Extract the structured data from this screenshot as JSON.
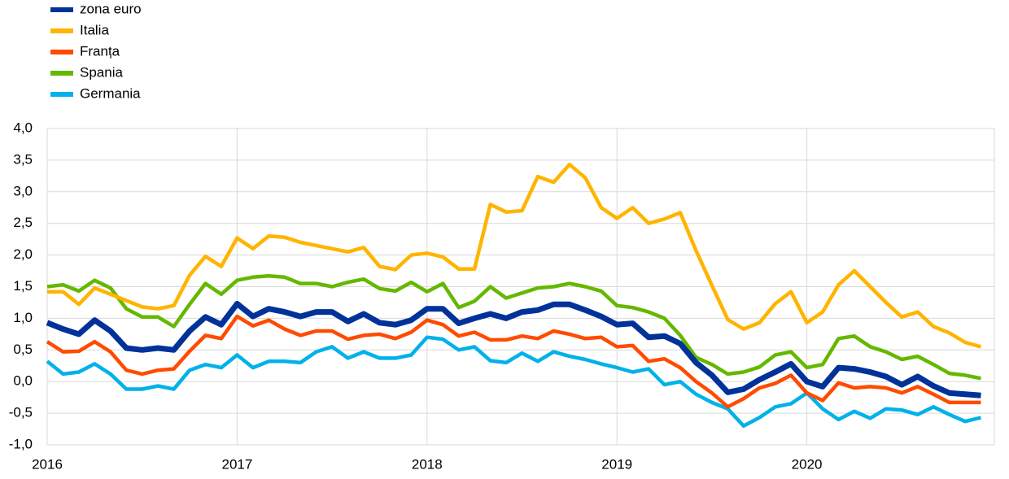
{
  "chart_data": {
    "type": "line",
    "categories": [
      "2016",
      null,
      null,
      null,
      null,
      null,
      null,
      null,
      null,
      null,
      null,
      null,
      "2017",
      null,
      null,
      null,
      null,
      null,
      null,
      null,
      null,
      null,
      null,
      null,
      "2018",
      null,
      null,
      null,
      null,
      null,
      null,
      null,
      null,
      null,
      null,
      null,
      "2019",
      null,
      null,
      null,
      null,
      null,
      null,
      null,
      null,
      null,
      null,
      null,
      "2020",
      null,
      null,
      null,
      null,
      null,
      null,
      null,
      null,
      null,
      null,
      null
    ],
    "series": [
      {
        "name": "zona euro",
        "color": "#003299",
        "values": [
          0.93,
          0.83,
          0.75,
          0.97,
          0.8,
          0.53,
          0.5,
          0.53,
          0.5,
          0.8,
          1.02,
          0.9,
          1.23,
          1.03,
          1.15,
          1.1,
          1.03,
          1.1,
          1.1,
          0.95,
          1.07,
          0.93,
          0.9,
          0.97,
          1.15,
          1.15,
          0.92,
          1.0,
          1.07,
          1.0,
          1.1,
          1.13,
          1.22,
          1.22,
          1.13,
          1.03,
          0.9,
          0.92,
          0.7,
          0.72,
          0.6,
          0.3,
          0.1,
          -0.17,
          -0.12,
          0.03,
          0.15,
          0.28,
          0.0,
          -0.08,
          0.22,
          0.2,
          0.15,
          0.08,
          -0.05,
          0.08,
          -0.07,
          -0.18,
          -0.2,
          -0.22
        ]
      },
      {
        "name": "Italia",
        "color": "#ffb400",
        "values": [
          1.42,
          1.42,
          1.22,
          1.48,
          1.38,
          1.28,
          1.18,
          1.15,
          1.2,
          1.68,
          1.98,
          1.82,
          2.27,
          2.1,
          2.3,
          2.28,
          2.2,
          2.15,
          2.1,
          2.05,
          2.12,
          1.82,
          1.77,
          2.0,
          2.03,
          1.97,
          1.78,
          1.78,
          2.8,
          2.68,
          2.7,
          3.24,
          3.15,
          3.43,
          3.22,
          2.75,
          2.58,
          2.75,
          2.5,
          2.57,
          2.67,
          2.07,
          1.52,
          0.98,
          0.83,
          0.93,
          1.23,
          1.42,
          0.93,
          1.1,
          1.53,
          1.75,
          1.5,
          1.25,
          1.02,
          1.1,
          0.87,
          0.77,
          0.62,
          0.55
        ]
      },
      {
        "name": "Franța",
        "color": "#ff4b00",
        "values": [
          0.63,
          0.47,
          0.48,
          0.63,
          0.47,
          0.18,
          0.12,
          0.18,
          0.2,
          0.48,
          0.73,
          0.68,
          1.03,
          0.88,
          0.97,
          0.83,
          0.73,
          0.8,
          0.8,
          0.67,
          0.73,
          0.75,
          0.68,
          0.78,
          0.97,
          0.9,
          0.72,
          0.78,
          0.66,
          0.66,
          0.72,
          0.68,
          0.8,
          0.75,
          0.68,
          0.7,
          0.55,
          0.57,
          0.32,
          0.36,
          0.22,
          0.0,
          -0.18,
          -0.4,
          -0.27,
          -0.1,
          -0.03,
          0.1,
          -0.18,
          -0.3,
          -0.02,
          -0.1,
          -0.08,
          -0.1,
          -0.18,
          -0.08,
          -0.2,
          -0.33,
          -0.33,
          -0.33
        ]
      },
      {
        "name": "Spania",
        "color": "#65b800",
        "values": [
          1.5,
          1.53,
          1.43,
          1.6,
          1.48,
          1.15,
          1.02,
          1.02,
          0.87,
          1.22,
          1.55,
          1.38,
          1.6,
          1.65,
          1.67,
          1.65,
          1.55,
          1.55,
          1.5,
          1.57,
          1.62,
          1.47,
          1.43,
          1.57,
          1.42,
          1.55,
          1.17,
          1.27,
          1.5,
          1.32,
          1.4,
          1.48,
          1.5,
          1.55,
          1.5,
          1.43,
          1.2,
          1.17,
          1.1,
          1.0,
          0.73,
          0.38,
          0.27,
          0.12,
          0.15,
          0.23,
          0.42,
          0.47,
          0.22,
          0.27,
          0.68,
          0.72,
          0.55,
          0.47,
          0.35,
          0.4,
          0.27,
          0.13,
          0.1,
          0.05
        ]
      },
      {
        "name": "Germania",
        "color": "#00b1ea",
        "values": [
          0.32,
          0.12,
          0.15,
          0.28,
          0.12,
          -0.12,
          -0.12,
          -0.07,
          -0.12,
          0.18,
          0.27,
          0.22,
          0.42,
          0.22,
          0.32,
          0.32,
          0.3,
          0.47,
          0.55,
          0.37,
          0.47,
          0.37,
          0.37,
          0.42,
          0.7,
          0.67,
          0.5,
          0.55,
          0.33,
          0.3,
          0.45,
          0.32,
          0.47,
          0.4,
          0.35,
          0.28,
          0.22,
          0.15,
          0.2,
          -0.05,
          0.0,
          -0.2,
          -0.33,
          -0.43,
          -0.7,
          -0.57,
          -0.4,
          -0.35,
          -0.18,
          -0.43,
          -0.6,
          -0.47,
          -0.58,
          -0.43,
          -0.45,
          -0.52,
          -0.4,
          -0.52,
          -0.63,
          -0.57
        ]
      }
    ],
    "ylim": [
      -1,
      4
    ],
    "yticks": [
      {
        "value": -1,
        "label": "-1,0"
      },
      {
        "value": -0.5,
        "label": "-0,5"
      },
      {
        "value": 0,
        "label": "0,0"
      },
      {
        "value": 0.5,
        "label": "0,5"
      },
      {
        "value": 1,
        "label": "1,0"
      },
      {
        "value": 1.5,
        "label": "1,5"
      },
      {
        "value": 2,
        "label": "2,0"
      },
      {
        "value": 2.5,
        "label": "2,5"
      },
      {
        "value": 3,
        "label": "3,0"
      },
      {
        "value": 3.5,
        "label": "3,5"
      },
      {
        "value": 4,
        "label": "4,0"
      }
    ],
    "grid": true,
    "legend": "top-left"
  }
}
